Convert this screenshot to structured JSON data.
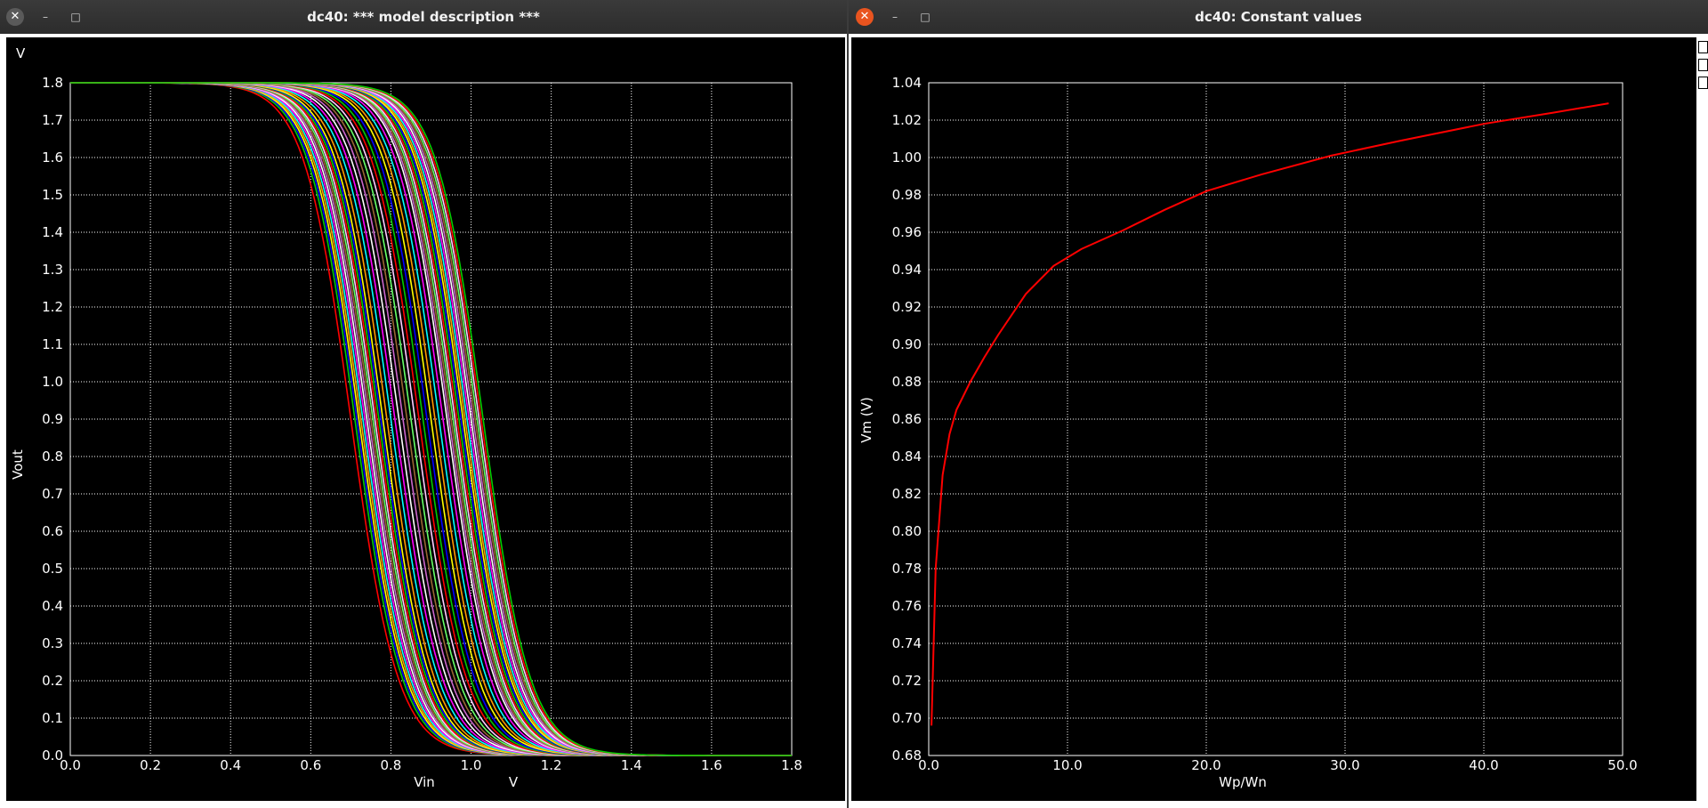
{
  "left_window": {
    "title": "dc40: *** model description ***",
    "close_icon": "✕",
    "minimize_icon": "–",
    "maximize_icon": "□"
  },
  "right_window": {
    "title": "dc40: Constant values",
    "close_icon": "✕",
    "minimize_icon": "–",
    "maximize_icon": "□"
  },
  "colors": {
    "background": "#000000",
    "grid": "#ffffff",
    "right_curve": "#ff0000"
  },
  "chart_data": [
    {
      "type": "line",
      "title": "",
      "y_unit": "V",
      "x_unit": "V",
      "xlabel": "Vin",
      "ylabel": "Vout",
      "xlim": [
        0.0,
        1.8
      ],
      "ylim": [
        0.0,
        1.8
      ],
      "x_ticks": [
        "0.0",
        "0.2",
        "0.4",
        "0.6",
        "0.8",
        "1.0",
        "1.2",
        "1.4",
        "1.6",
        "1.8"
      ],
      "y_ticks": [
        "0.0",
        "0.1",
        "0.2",
        "0.3",
        "0.4",
        "0.5",
        "0.6",
        "0.7",
        "0.8",
        "0.9",
        "1.0",
        "1.1",
        "1.2",
        "1.3",
        "1.4",
        "1.5",
        "1.6",
        "1.7",
        "1.8"
      ],
      "grid": true,
      "curve_shape": "inverter-transfer",
      "vdd": 1.8,
      "series_colors": [
        "#ff0000",
        "#00cc00",
        "#0000ff",
        "#ffff00",
        "#ff9900",
        "#00ffff",
        "#ff00ff",
        "#ffffff",
        "#cc66cc",
        "#996633",
        "#66ff66",
        "#ffccff"
      ],
      "series": [
        {
          "vm": 0.7
        },
        {
          "vm": 0.71
        },
        {
          "vm": 0.715
        },
        {
          "vm": 0.72
        },
        {
          "vm": 0.725
        },
        {
          "vm": 0.73
        },
        {
          "vm": 0.735
        },
        {
          "vm": 0.74
        },
        {
          "vm": 0.745
        },
        {
          "vm": 0.75
        },
        {
          "vm": 0.755
        },
        {
          "vm": 0.76
        },
        {
          "vm": 0.765
        },
        {
          "vm": 0.77
        },
        {
          "vm": 0.775
        },
        {
          "vm": 0.78
        },
        {
          "vm": 0.79
        },
        {
          "vm": 0.8
        },
        {
          "vm": 0.81
        },
        {
          "vm": 0.82
        },
        {
          "vm": 0.83
        },
        {
          "vm": 0.84
        },
        {
          "vm": 0.85
        },
        {
          "vm": 0.86
        },
        {
          "vm": 0.87
        },
        {
          "vm": 0.88
        },
        {
          "vm": 0.89
        },
        {
          "vm": 0.9
        },
        {
          "vm": 0.91
        },
        {
          "vm": 0.92
        },
        {
          "vm": 0.93
        },
        {
          "vm": 0.94
        },
        {
          "vm": 0.945
        },
        {
          "vm": 0.95
        },
        {
          "vm": 0.955
        },
        {
          "vm": 0.96
        },
        {
          "vm": 0.965
        },
        {
          "vm": 0.97
        },
        {
          "vm": 0.975
        },
        {
          "vm": 0.98
        },
        {
          "vm": 0.985
        },
        {
          "vm": 0.99
        },
        {
          "vm": 0.995
        },
        {
          "vm": 1.0
        },
        {
          "vm": 1.005
        },
        {
          "vm": 1.01
        },
        {
          "vm": 1.015
        },
        {
          "vm": 1.02
        },
        {
          "vm": 1.025
        },
        {
          "vm": 1.03
        }
      ]
    },
    {
      "type": "line",
      "title": "",
      "xlabel": "Wp/Wn",
      "ylabel": "Vm (V)",
      "xlim": [
        0.0,
        50.0
      ],
      "ylim": [
        0.68,
        1.04
      ],
      "x_ticks": [
        "0.0",
        "10.0",
        "20.0",
        "30.0",
        "40.0",
        "50.0"
      ],
      "y_ticks": [
        "0.68",
        "0.70",
        "0.72",
        "0.74",
        "0.76",
        "0.78",
        "0.80",
        "0.82",
        "0.84",
        "0.86",
        "0.88",
        "0.90",
        "0.92",
        "0.94",
        "0.96",
        "0.98",
        "1.00",
        "1.02",
        "1.04"
      ],
      "grid": true,
      "series": [
        {
          "x": [
            0.2,
            0.5,
            1.0,
            1.5,
            2.0,
            3.0,
            4.0,
            5.0,
            7.0,
            9.0,
            11.0,
            14.0,
            17.0,
            20.0,
            24.0,
            29.0,
            34.0,
            40.0,
            45.0,
            49.0
          ],
          "y": [
            0.696,
            0.78,
            0.83,
            0.852,
            0.865,
            0.88,
            0.893,
            0.905,
            0.927,
            0.942,
            0.951,
            0.961,
            0.972,
            0.982,
            0.991,
            1.001,
            1.009,
            1.018,
            1.024,
            1.029
          ]
        }
      ]
    }
  ]
}
